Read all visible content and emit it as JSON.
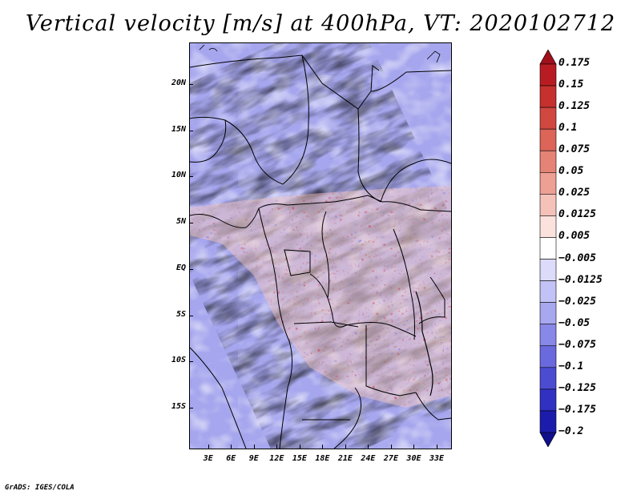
{
  "title": "Vertical velocity [m/s] at 400hPa, VT: 2020102712",
  "footer": "GrADS: IGES/COLA",
  "lat_labels": [
    "20N",
    "15N",
    "10N",
    "5N",
    "EQ",
    "5S",
    "10S",
    "15S"
  ],
  "lat_values": [
    20,
    15,
    10,
    5,
    0,
    -5,
    -10,
    -15
  ],
  "lon_labels": [
    "3E",
    "6E",
    "9E",
    "12E",
    "15E",
    "18E",
    "21E",
    "24E",
    "27E",
    "30E",
    "33E"
  ],
  "lon_values": [
    3,
    6,
    9,
    12,
    15,
    18,
    21,
    24,
    27,
    30,
    33
  ],
  "map_extent": {
    "lon_min": 0.5,
    "lon_max": 35,
    "lat_min": -19.5,
    "lat_max": 24.5
  },
  "colorbar": {
    "labels": [
      "0.175",
      "0.15",
      "0.125",
      "0.1",
      "0.075",
      "0.05",
      "0.025",
      "0.0125",
      "0.005",
      "−0.005",
      "−0.0125",
      "−0.025",
      "−0.05",
      "−0.075",
      "−0.1",
      "−0.125",
      "−0.175",
      "−0.2"
    ],
    "colors": [
      "#a0101a",
      "#b81c22",
      "#c6302e",
      "#d04840",
      "#dc6458",
      "#e58476",
      "#eea094",
      "#f5c2ba",
      "#fbe2dc",
      "#ffffff",
      "#dcdcfa",
      "#c2c2f6",
      "#a8a8f0",
      "#8888e8",
      "#6a6ade",
      "#4c4cd2",
      "#3030c2",
      "#1c1cac",
      "#10108c"
    ]
  }
}
